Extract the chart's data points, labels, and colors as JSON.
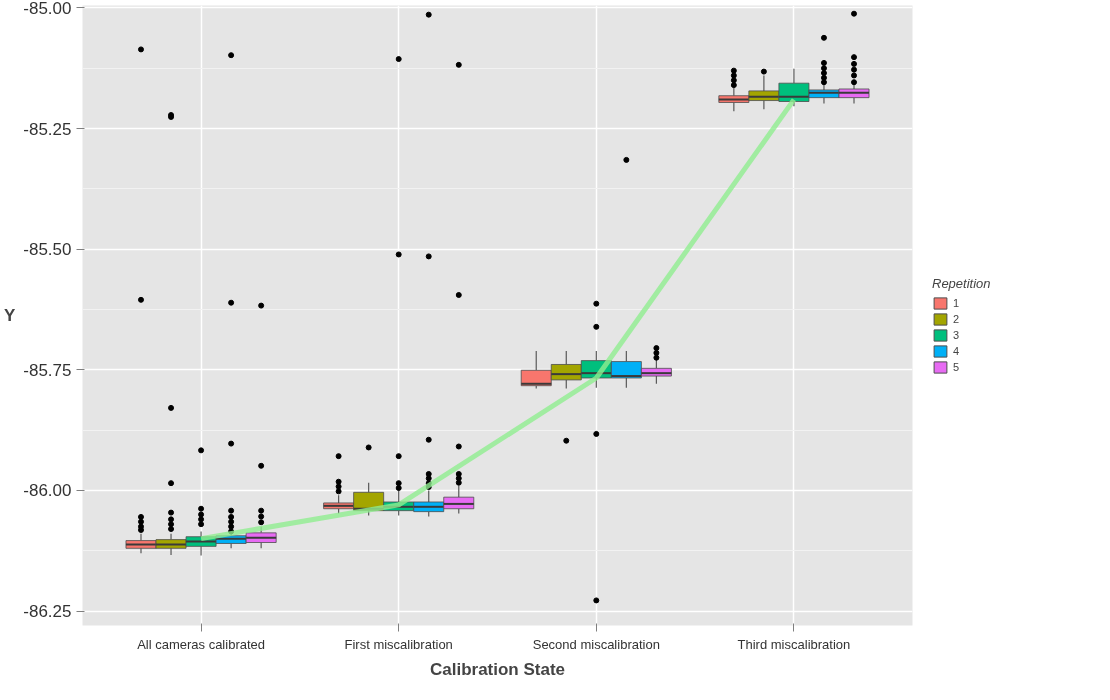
{
  "chart_data": {
    "type": "box",
    "xlabel": "Calibration State",
    "ylabel": "Y",
    "legend_title": "Repetition",
    "legend": "right",
    "grid": true,
    "categories": [
      "All cameras calibrated",
      "First miscalibration",
      "Second miscalibration",
      "Third miscalibration"
    ],
    "ylim": [
      -86.28,
      -84.995
    ],
    "yticks": [
      {
        "value": -86.25,
        "label": "-86.25"
      },
      {
        "value": -86.0,
        "label": "-86.00"
      },
      {
        "value": -85.75,
        "label": "-85.75"
      },
      {
        "value": -85.5,
        "label": "-85.50"
      },
      {
        "value": -85.25,
        "label": "-85.25"
      },
      {
        "value": -85.0,
        "label": "-85.00"
      }
    ],
    "series": [
      {
        "name": "1",
        "color": "#f8766d",
        "boxes": [
          {
            "low": -86.13,
            "q1": -86.12,
            "median": -86.112,
            "q3": -86.104,
            "high": -86.09,
            "outliers": [
              -85.086,
              -85.605,
              -86.055,
              -86.065,
              -86.075,
              -86.082
            ]
          },
          {
            "low": -86.048,
            "q1": -86.038,
            "median": -86.032,
            "q3": -86.026,
            "high": -86.01,
            "outliers": [
              -85.929,
              -85.982,
              -85.992,
              -86.002
            ]
          },
          {
            "low": -85.789,
            "q1": -85.783,
            "median": -85.779,
            "q3": -85.751,
            "high": -85.711
          },
          {
            "low": -85.214,
            "q1": -85.196,
            "median": -85.19,
            "q3": -85.182,
            "high": -85.165,
            "outliers": [
              -85.13,
              -85.14,
              -85.15,
              -85.16
            ]
          }
        ]
      },
      {
        "name": "2",
        "color": "#a3a500",
        "boxes": [
          {
            "low": -86.134,
            "q1": -86.12,
            "median": -86.112,
            "q3": -86.102,
            "high": -86.09,
            "outliers": [
              -85.222,
              -85.226,
              -85.829,
              -85.985,
              -86.046,
              -86.06,
              -86.07,
              -86.08
            ]
          },
          {
            "low": -86.052,
            "q1": -86.042,
            "median": -86.038,
            "q3": -86.004,
            "high": -85.984,
            "outliers": [
              -85.911
            ]
          },
          {
            "low": -85.789,
            "q1": -85.771,
            "median": -85.759,
            "q3": -85.739,
            "high": -85.711,
            "outliers": [
              -85.897
            ]
          },
          {
            "low": -85.21,
            "q1": -85.192,
            "median": -85.184,
            "q3": -85.172,
            "high": -85.14,
            "outliers": [
              -85.132
            ]
          }
        ]
      },
      {
        "name": "3",
        "color": "#00bf7d",
        "boxes": [
          {
            "low": -86.135,
            "q1": -86.116,
            "median": -86.106,
            "q3": -86.096,
            "high": -86.085,
            "outliers": [
              -85.917,
              -86.038,
              -86.05,
              -86.06,
              -86.07
            ]
          },
          {
            "low": -86.052,
            "q1": -86.042,
            "median": -86.034,
            "q3": -86.024,
            "high": -86.0,
            "outliers": [
              -85.106,
              -85.511,
              -85.929,
              -85.985,
              -85.995
            ]
          },
          {
            "low": -85.787,
            "q1": -85.767,
            "median": -85.757,
            "q3": -85.731,
            "high": -85.711,
            "outliers": [
              -85.613,
              -85.661,
              -85.883,
              -86.228
            ]
          },
          {
            "low": -85.204,
            "q1": -85.194,
            "median": -85.184,
            "q3": -85.156,
            "high": -85.126
          }
        ]
      },
      {
        "name": "4",
        "color": "#00b0f6",
        "boxes": [
          {
            "low": -86.12,
            "q1": -86.11,
            "median": -86.1,
            "q3": -86.094,
            "high": -86.09,
            "outliers": [
              -85.098,
              -85.611,
              -85.903,
              -86.042,
              -86.055,
              -86.065,
              -86.075,
              -86.085
            ]
          },
          {
            "low": -86.054,
            "q1": -86.044,
            "median": -86.034,
            "q3": -86.024,
            "high": -86.0,
            "outliers": [
              -85.014,
              -85.515,
              -85.895,
              -85.966,
              -85.975,
              -85.985,
              -85.993
            ]
          },
          {
            "low": -85.787,
            "q1": -85.767,
            "median": -85.763,
            "q3": -85.733,
            "high": -85.711,
            "outliers": [
              -85.315
            ]
          },
          {
            "low": -85.198,
            "q1": -85.186,
            "median": -85.176,
            "q3": -85.17,
            "high": -85.16,
            "outliers": [
              -85.062,
              -85.114,
              -85.125,
              -85.135,
              -85.145,
              -85.154
            ]
          }
        ]
      },
      {
        "name": "5",
        "color": "#e76bf3",
        "boxes": [
          {
            "low": -86.12,
            "q1": -86.108,
            "median": -86.098,
            "q3": -86.088,
            "high": -86.075,
            "outliers": [
              -85.617,
              -85.949,
              -86.042,
              -86.054,
              -86.066
            ]
          },
          {
            "low": -86.048,
            "q1": -86.038,
            "median": -86.028,
            "q3": -86.014,
            "high": -85.99,
            "outliers": [
              -85.118,
              -85.595,
              -85.909,
              -85.966,
              -85.975,
              -85.984
            ]
          },
          {
            "low": -85.779,
            "q1": -85.763,
            "median": -85.757,
            "q3": -85.747,
            "high": -85.729,
            "outliers": [
              -85.705,
              -85.715,
              -85.725
            ]
          },
          {
            "low": -85.198,
            "q1": -85.186,
            "median": -85.176,
            "q3": -85.168,
            "high": -85.16,
            "outliers": [
              -85.012,
              -85.102,
              -85.116,
              -85.128,
              -85.14,
              -85.154
            ]
          }
        ]
      },
      {
        "type": "line",
        "color": "#90ee90",
        "values": [
          -86.1,
          -86.03,
          -85.767,
          -85.19
        ]
      }
    ]
  }
}
